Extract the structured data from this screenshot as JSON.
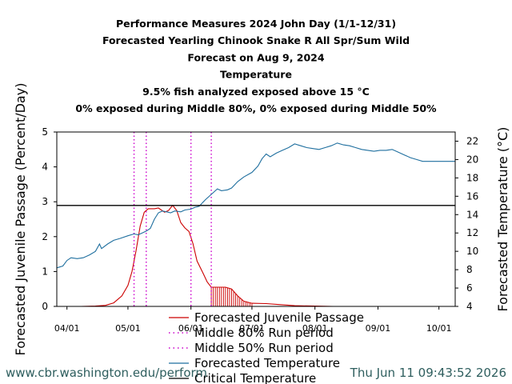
{
  "chart_data": {
    "type": "line",
    "title_lines": [
      "Performance Measures 2024 John Day (1/1-12/31)",
      "Forecasted Yearling Chinook Snake R All Spr/Sum Wild",
      "Forecast on Aug 9, 2024",
      "Temperature",
      "9.5% fish analyzed exposed above 15 °C",
      "0% exposed during Middle 80%, 0% exposed during Middle 50%"
    ],
    "ylabel_left": "Forecasted Juvenile Passage (Percent/Day)",
    "ylabel_right": "Forecasted Temperature (°C)",
    "x_ticks": [
      {
        "date": "2024-04-01",
        "label": "04/01"
      },
      {
        "date": "2024-05-01",
        "label": "05/01"
      },
      {
        "date": "2024-06-01",
        "label": "06/01"
      },
      {
        "date": "2024-07-01",
        "label": "07/01"
      },
      {
        "date": "2024-08-01",
        "label": "08/01"
      },
      {
        "date": "2024-09-01",
        "label": "09/01"
      },
      {
        "date": "2024-10-01",
        "label": "10/01"
      }
    ],
    "xlim": [
      "2024-03-27",
      "2024-10-09"
    ],
    "ylim_left": [
      0,
      5
    ],
    "yticks_left": [
      0,
      1,
      2,
      3,
      4,
      5
    ],
    "ylim_right": [
      4,
      23
    ],
    "yticks_right": [
      4,
      6,
      8,
      10,
      12,
      14,
      16,
      18,
      20,
      22
    ],
    "critical_temperature": 15,
    "middle_80_period": [
      "2024-05-04",
      "2024-06-11"
    ],
    "middle_50_period": [
      "2024-05-10",
      "2024-06-01"
    ],
    "series": [
      {
        "name": "Forecasted Juvenile Passage",
        "axis": "left",
        "color": "#cc0000",
        "points": [
          [
            "2024-04-08",
            0
          ],
          [
            "2024-04-15",
            0.01
          ],
          [
            "2024-04-20",
            0.03
          ],
          [
            "2024-04-24",
            0.1
          ],
          [
            "2024-04-28",
            0.3
          ],
          [
            "2024-05-01",
            0.6
          ],
          [
            "2024-05-03",
            1.0
          ],
          [
            "2024-05-05",
            1.6
          ],
          [
            "2024-05-07",
            2.3
          ],
          [
            "2024-05-09",
            2.7
          ],
          [
            "2024-05-11",
            2.8
          ],
          [
            "2024-05-14",
            2.8
          ],
          [
            "2024-05-16",
            2.82
          ],
          [
            "2024-05-19",
            2.7
          ],
          [
            "2024-05-21",
            2.75
          ],
          [
            "2024-05-23",
            2.9
          ],
          [
            "2024-05-25",
            2.75
          ],
          [
            "2024-05-27",
            2.4
          ],
          [
            "2024-05-29",
            2.25
          ],
          [
            "2024-05-31",
            2.15
          ],
          [
            "2024-06-02",
            1.8
          ],
          [
            "2024-06-04",
            1.3
          ],
          [
            "2024-06-07",
            0.95
          ],
          [
            "2024-06-09",
            0.7
          ],
          [
            "2024-06-11",
            0.55
          ],
          [
            "2024-06-14",
            0.55
          ],
          [
            "2024-06-18",
            0.55
          ],
          [
            "2024-06-21",
            0.5
          ],
          [
            "2024-06-24",
            0.3
          ],
          [
            "2024-06-27",
            0.15
          ],
          [
            "2024-07-01",
            0.09
          ],
          [
            "2024-07-08",
            0.08
          ],
          [
            "2024-07-15",
            0.05
          ],
          [
            "2024-07-22",
            0.02
          ],
          [
            "2024-08-01",
            0.01
          ],
          [
            "2024-08-10",
            0
          ]
        ]
      },
      {
        "name": "Forecasted Temperature",
        "axis": "right",
        "color": "#1f6f9f",
        "points": [
          [
            "2024-03-27",
            8.2
          ],
          [
            "2024-03-30",
            8.4
          ],
          [
            "2024-04-01",
            9.0
          ],
          [
            "2024-04-03",
            9.3
          ],
          [
            "2024-04-06",
            9.2
          ],
          [
            "2024-04-09",
            9.3
          ],
          [
            "2024-04-12",
            9.6
          ],
          [
            "2024-04-15",
            10.0
          ],
          [
            "2024-04-17",
            10.8
          ],
          [
            "2024-04-18",
            10.3
          ],
          [
            "2024-04-21",
            10.8
          ],
          [
            "2024-04-24",
            11.2
          ],
          [
            "2024-04-27",
            11.4
          ],
          [
            "2024-05-01",
            11.7
          ],
          [
            "2024-05-04",
            11.9
          ],
          [
            "2024-05-06",
            11.8
          ],
          [
            "2024-05-08",
            12.0
          ],
          [
            "2024-05-10",
            12.2
          ],
          [
            "2024-05-12",
            12.5
          ],
          [
            "2024-05-14",
            13.5
          ],
          [
            "2024-05-16",
            14.2
          ],
          [
            "2024-05-18",
            14.4
          ],
          [
            "2024-05-20",
            14.3
          ],
          [
            "2024-05-22",
            14.2
          ],
          [
            "2024-05-24",
            14.4
          ],
          [
            "2024-05-27",
            14.3
          ],
          [
            "2024-05-29",
            14.5
          ],
          [
            "2024-06-01",
            14.6
          ],
          [
            "2024-06-03",
            14.8
          ],
          [
            "2024-06-05",
            14.9
          ],
          [
            "2024-06-08",
            15.6
          ],
          [
            "2024-06-11",
            16.2
          ],
          [
            "2024-06-14",
            16.8
          ],
          [
            "2024-06-16",
            16.6
          ],
          [
            "2024-06-19",
            16.7
          ],
          [
            "2024-06-21",
            16.9
          ],
          [
            "2024-06-24",
            17.6
          ],
          [
            "2024-06-27",
            18.1
          ],
          [
            "2024-07-01",
            18.6
          ],
          [
            "2024-07-04",
            19.3
          ],
          [
            "2024-07-06",
            20.1
          ],
          [
            "2024-07-08",
            20.6
          ],
          [
            "2024-07-10",
            20.3
          ],
          [
            "2024-07-13",
            20.7
          ],
          [
            "2024-07-16",
            21.0
          ],
          [
            "2024-07-19",
            21.3
          ],
          [
            "2024-07-22",
            21.7
          ],
          [
            "2024-07-25",
            21.5
          ],
          [
            "2024-07-28",
            21.3
          ],
          [
            "2024-07-31",
            21.2
          ],
          [
            "2024-08-03",
            21.1
          ],
          [
            "2024-08-06",
            21.3
          ],
          [
            "2024-08-09",
            21.5
          ],
          [
            "2024-08-12",
            21.8
          ],
          [
            "2024-08-15",
            21.6
          ],
          [
            "2024-08-18",
            21.5
          ],
          [
            "2024-08-21",
            21.3
          ],
          [
            "2024-08-24",
            21.1
          ],
          [
            "2024-08-27",
            21.0
          ],
          [
            "2024-08-30",
            20.9
          ],
          [
            "2024-09-02",
            21.0
          ],
          [
            "2024-09-05",
            21.0
          ],
          [
            "2024-09-08",
            21.1
          ],
          [
            "2024-09-11",
            20.8
          ],
          [
            "2024-09-14",
            20.5
          ],
          [
            "2024-09-17",
            20.2
          ],
          [
            "2024-09-20",
            20.0
          ],
          [
            "2024-09-23",
            19.8
          ],
          [
            "2024-09-27",
            19.8
          ],
          [
            "2024-10-02",
            19.8
          ],
          [
            "2024-10-09",
            19.8
          ]
        ]
      }
    ],
    "legend": [
      {
        "label": "Forecasted Juvenile Passage",
        "style": "line",
        "color": "#cc0000"
      },
      {
        "label": "Middle 80% Run period",
        "style": "dotted",
        "color": "#cc00cc"
      },
      {
        "label": "Middle 50% Run period",
        "style": "dotted",
        "color": "#cc00cc"
      },
      {
        "label": "Forecasted Temperature",
        "style": "line",
        "color": "#1f6f9f"
      },
      {
        "label": "Critical Temperature",
        "style": "line",
        "color": "#000000"
      }
    ]
  },
  "footer": {
    "url": "www.cbr.washington.edu/perform",
    "timestamp": "Thu Jun 11 09:43:52 2026"
  }
}
